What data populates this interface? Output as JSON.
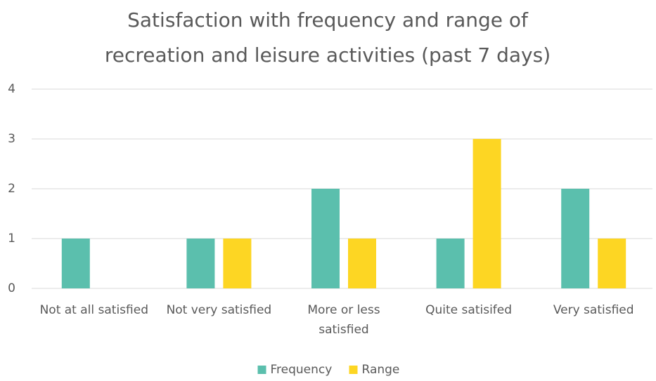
{
  "chart_data": {
    "type": "bar",
    "title": "Satisfaction with frequency and range of recreation and leisure activities (past 7 days)",
    "categories": [
      "Not at all satisfied",
      "Not very satisfied",
      "More or less satisfied",
      "Quite satisifed",
      "Very satisfied"
    ],
    "series": [
      {
        "name": "Frequency",
        "color": "#5bbfad",
        "values": [
          1,
          1,
          2,
          1,
          2
        ]
      },
      {
        "name": "Range",
        "color": "#fdd623",
        "values": [
          0,
          1,
          1,
          3,
          1
        ]
      }
    ],
    "ylim": [
      0,
      4
    ],
    "yticks": [
      0,
      1,
      2,
      3,
      4
    ],
    "grid": true,
    "legend": "bottom"
  }
}
